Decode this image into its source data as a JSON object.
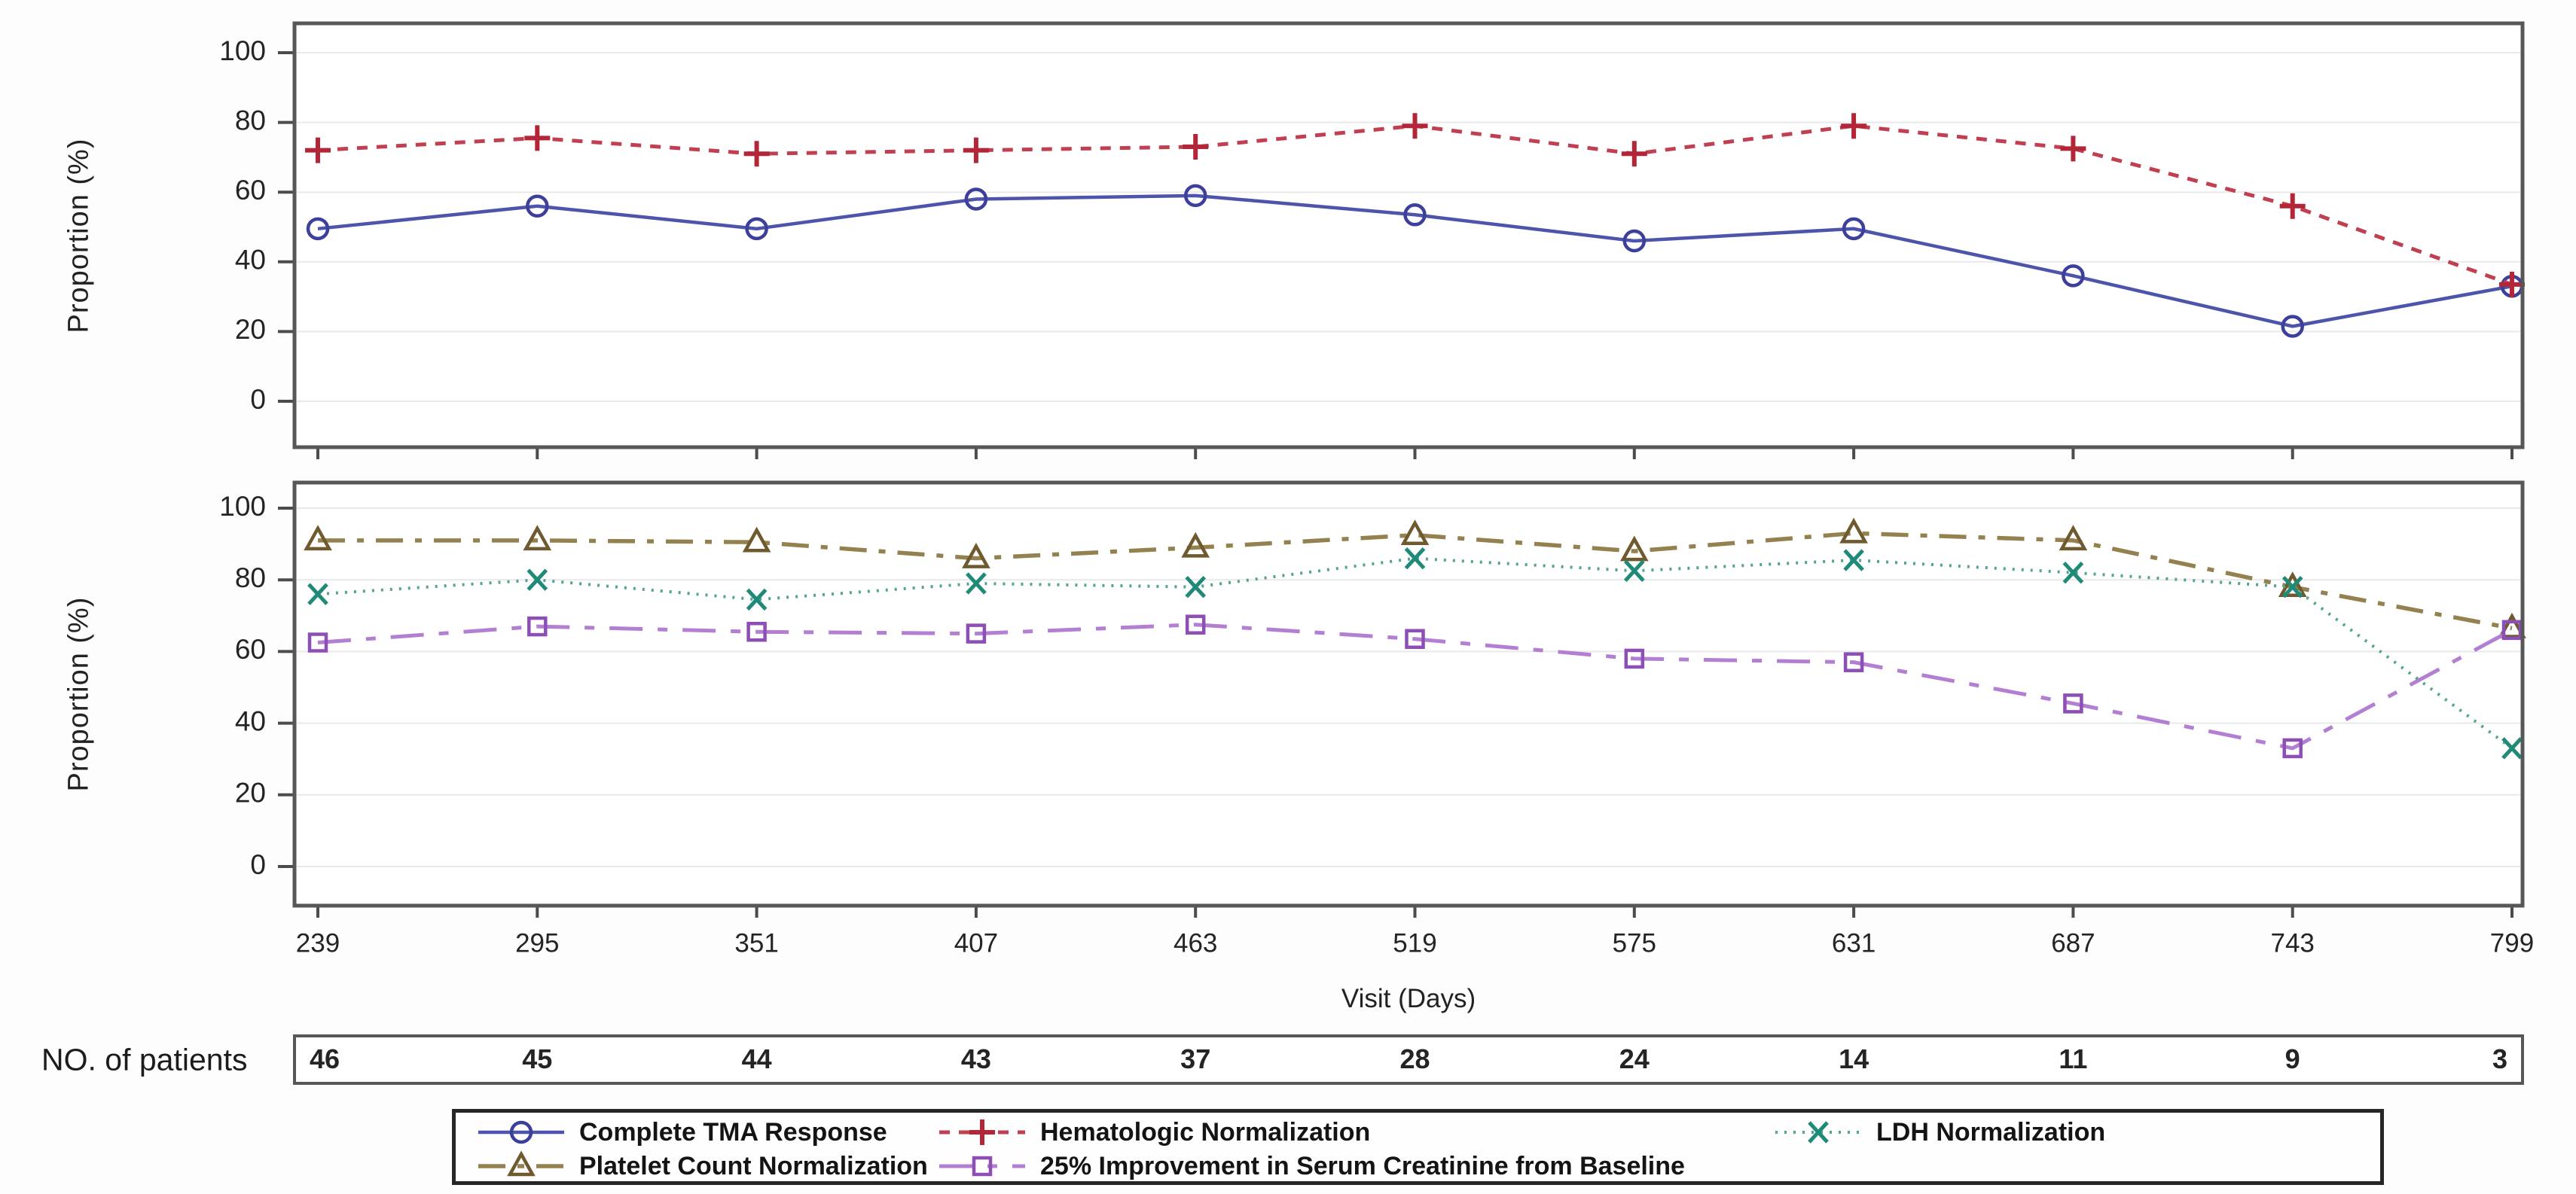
{
  "figure": {
    "y_axis_label": "Proportion (%)",
    "x_axis_label": "Visit (Days)",
    "patients_row_label": "NO. of patients"
  },
  "chart_data": {
    "type": "line",
    "title": "",
    "x_label": "Visit (Days)",
    "y_label": "Proportion (%)",
    "x": [
      239,
      295,
      351,
      407,
      463,
      519,
      575,
      631,
      687,
      743,
      799
    ],
    "y_ticks": [
      0,
      20,
      40,
      60,
      80,
      100
    ],
    "ylim": [
      0,
      106
    ],
    "grid": true,
    "no_of_patients_label": "NO. of patients",
    "no_of_patients": [
      46,
      45,
      44,
      43,
      37,
      28,
      24,
      14,
      11,
      9,
      3
    ],
    "panels": [
      {
        "name": "top",
        "series": [
          {
            "name": "Complete TMA Response",
            "color": "#4d54ab",
            "marker_color": "#3c3f9b",
            "line": "solid",
            "marker": "circle",
            "values": [
              49.5,
              56,
              49.5,
              58,
              59,
              53.5,
              46,
              49.5,
              36,
              21.5,
              33
            ]
          },
          {
            "name": "Hematologic Normalization",
            "color": "#c04052",
            "marker_color": "#b22638",
            "line": "dashed",
            "marker": "plus",
            "values": [
              72,
              75.5,
              71,
              72,
              73,
              79,
              71,
              79,
              72.5,
              56,
              33.5
            ]
          }
        ]
      },
      {
        "name": "bottom",
        "series": [
          {
            "name": "Platelet Count Normalization",
            "color": "#93814f",
            "marker_color": "#6e5a2e",
            "line": "dashdot",
            "marker": "triangle",
            "values": [
              91,
              91,
              90.5,
              86,
              89,
              92.5,
              88,
              93,
              91,
              78,
              66.5
            ]
          },
          {
            "name": "25% Improvement in Serum Creatinine from Baseline",
            "color": "#b27fd2",
            "marker_color": "#8d4fb5",
            "line": "longdash",
            "marker": "square",
            "values": [
              62.5,
              67,
              65.5,
              65,
              67.5,
              63.5,
              58,
              57,
              45.5,
              33,
              66
            ]
          },
          {
            "name": "LDH Normalization",
            "color": "#55a394",
            "marker_color": "#1e8a77",
            "line": "dotted",
            "marker": "x",
            "values": [
              76,
              80,
              74.5,
              79,
              78,
              86,
              82.5,
              85.5,
              82,
              78,
              33
            ]
          }
        ]
      }
    ],
    "legend": {
      "position": "bottom",
      "rows": [
        [
          "Complete TMA Response",
          "Hematologic Normalization",
          "LDH Normalization"
        ],
        [
          "Platelet Count Normalization",
          "25% Improvement in Serum Creatinine from Baseline"
        ]
      ]
    }
  }
}
